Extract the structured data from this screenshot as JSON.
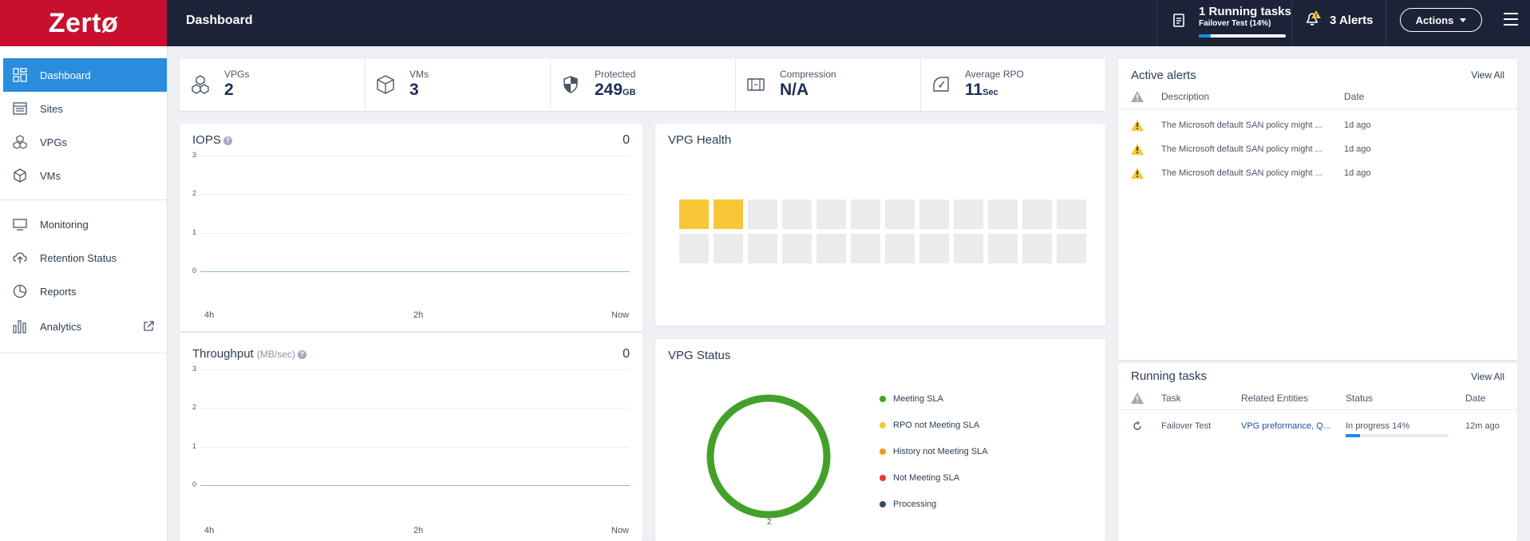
{
  "app": {
    "brand": "Zertø",
    "page_title": "Dashboard"
  },
  "topbar": {
    "running_tasks_title": "1 Running tasks",
    "running_tasks_sub": "Failover Test (14%)",
    "running_tasks_progress": 0.14,
    "alerts_label": "3 Alerts",
    "actions_label": "Actions"
  },
  "sidebar": {
    "items": [
      {
        "label": "Dashboard",
        "icon": "dashboard-icon",
        "active": true
      },
      {
        "label": "Sites",
        "icon": "sites-icon"
      },
      {
        "label": "VPGs",
        "icon": "vpgs-icon"
      },
      {
        "label": "VMs",
        "icon": "vms-icon"
      },
      {
        "label": "Monitoring",
        "icon": "monitor-icon"
      },
      {
        "label": "Retention Status",
        "icon": "cloud-upload-icon"
      },
      {
        "label": "Reports",
        "icon": "pie-chart-icon"
      },
      {
        "label": "Analytics",
        "icon": "bar-chart-icon"
      }
    ]
  },
  "stats": [
    {
      "label": "VPGs",
      "value": "2",
      "unit": "",
      "icon": "vpgs-icon"
    },
    {
      "label": "VMs",
      "value": "3",
      "unit": "",
      "icon": "vms-icon"
    },
    {
      "label": "Protected",
      "value": "249",
      "unit": "GB",
      "icon": "shield-icon"
    },
    {
      "label": "Compression",
      "value": "N/A",
      "unit": "",
      "icon": "compression-icon"
    },
    {
      "label": "Average RPO",
      "value": "11",
      "unit": "Sec",
      "icon": "gauge-icon"
    }
  ],
  "iops": {
    "title": "IOPS",
    "count": "0",
    "y_ticks": [
      "3",
      "2",
      "1",
      "0"
    ],
    "x_ticks": [
      "4h",
      "2h",
      "Now"
    ]
  },
  "throughput": {
    "title": "Throughput",
    "unit": "(MB/sec)",
    "count": "0",
    "y_ticks": [
      "3",
      "2",
      "1",
      "0"
    ],
    "x_ticks": [
      "4h",
      "2h",
      "Now"
    ]
  },
  "vpg_health": {
    "title": "VPG Health",
    "warning_count": 2,
    "total_cells": 24
  },
  "vpg_status": {
    "title": "VPG Status",
    "total_label": "2",
    "legend": [
      {
        "label": "Meeting SLA",
        "color": "#43a12a"
      },
      {
        "label": "RPO not Meeting SLA",
        "color": "#f8c636"
      },
      {
        "label": "History not Meeting SLA",
        "color": "#f59a1a"
      },
      {
        "label": "Not Meeting SLA",
        "color": "#e53935"
      },
      {
        "label": "Processing",
        "color": "#3a4a5c"
      }
    ]
  },
  "active_alerts": {
    "title": "Active alerts",
    "view_all": "View All",
    "columns": {
      "description": "Description",
      "date": "Date"
    },
    "rows": [
      {
        "description": "The Microsoft default SAN policy might ...",
        "date": "1d ago"
      },
      {
        "description": "The Microsoft default SAN policy might ...",
        "date": "1d ago"
      },
      {
        "description": "The Microsoft default SAN policy might ...",
        "date": "1d ago"
      }
    ]
  },
  "running_tasks": {
    "title": "Running tasks",
    "view_all": "View All",
    "columns": {
      "task": "Task",
      "entities": "Related Entities",
      "status": "Status",
      "date": "Date"
    },
    "rows": [
      {
        "task": "Failover Test",
        "entities": "VPG preformance, Q...",
        "status": "In progress 14%",
        "progress": 0.14,
        "date": "12m ago"
      }
    ]
  },
  "colors": {
    "brand_red": "#c8102e",
    "topbar": "#1c2338",
    "active_nav": "#2a8dde",
    "warning": "#f8c636",
    "sla_green": "#43a12a"
  }
}
